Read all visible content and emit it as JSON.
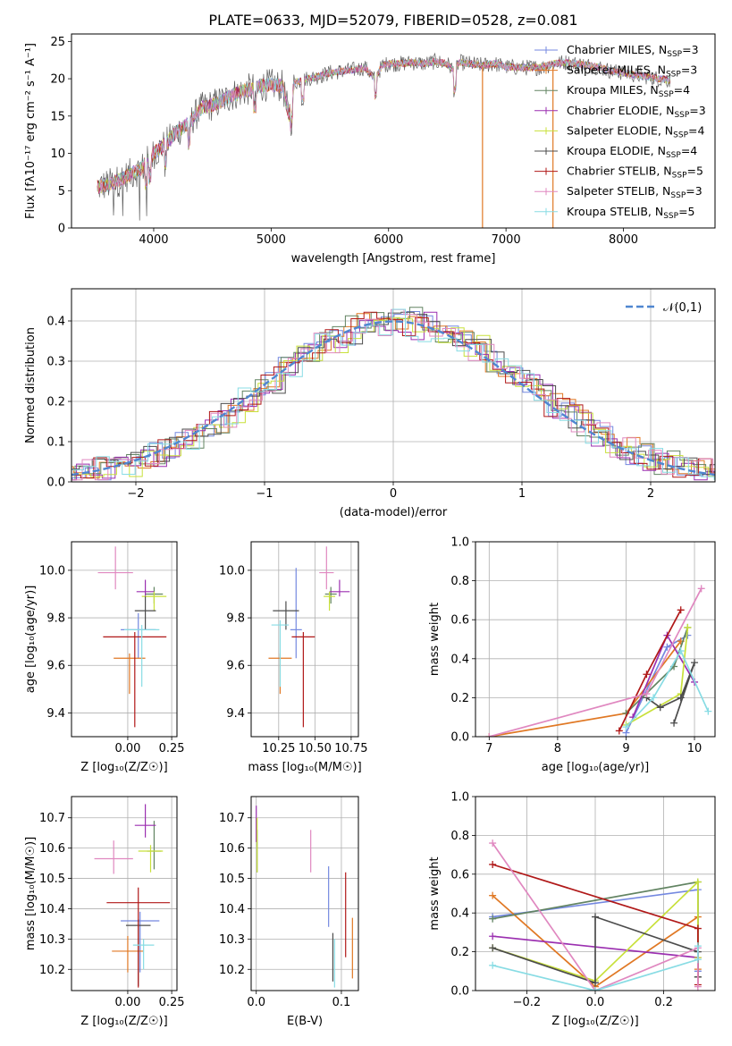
{
  "title": "PLATE=0633, MJD=52079, FIBERID=0528, z=0.081",
  "colors": [
    "#7488e0",
    "#e07824",
    "#628462",
    "#9b2fb0",
    "#c8e03a",
    "#4c4c4c",
    "#b01818",
    "#e088c0",
    "#88dce4"
  ],
  "chart_data": [
    {
      "id": "spectrum",
      "type": "line",
      "title": "PLATE=0633, MJD=52079, FIBERID=0528, z=0.081",
      "xlabel": "wavelength [Angstrom, rest frame]",
      "ylabel": "Flux [fλ10⁻¹⁷ erg cm⁻² s⁻¹ A⁻¹]",
      "xlim": [
        3300,
        8780
      ],
      "ylim": [
        0,
        26
      ],
      "xticks": [
        4000,
        5000,
        6000,
        7000,
        8000
      ],
      "yticks": [
        0,
        5,
        10,
        15,
        20,
        25
      ],
      "grid": false,
      "legend_position": "top-right",
      "legend": [
        "Chabrier MILES, N_SSP=3",
        "Salpeter MILES, N_SSP=3",
        "Kroupa MILES, N_SSP=4",
        "Chabrier ELODIE, N_SSP=3",
        "Salpeter ELODIE, N_SSP=4",
        "Kroupa ELODIE, N_SSP=4",
        "Chabrier STELIB, N_SSP=5",
        "Salpeter STELIB, N_SSP=3",
        "Kroupa STELIB, N_SSP=5"
      ],
      "envelope": {
        "x": [
          3520,
          3600,
          3700,
          3800,
          3900,
          4000,
          4100,
          4200,
          4300,
          4400,
          4500,
          4600,
          4700,
          4800,
          4900,
          5000,
          5100,
          5150,
          5200,
          5300,
          5400,
          5500,
          5600,
          5700,
          5800,
          5880,
          5950,
          6000,
          6100,
          6200,
          6300,
          6400,
          6500,
          6563,
          6600,
          6700,
          6800,
          6900,
          7000,
          7100,
          7200,
          7300,
          7400,
          7500,
          7600,
          7700,
          7800,
          7900,
          8000,
          8100,
          8200,
          8300,
          8400
        ],
        "y": [
          5.5,
          5.8,
          6.3,
          7.2,
          8.0,
          10.0,
          11.2,
          13.0,
          14.0,
          16.0,
          16.5,
          17.2,
          18.0,
          18.5,
          19.0,
          19.2,
          19.0,
          15.0,
          19.5,
          20.0,
          20.3,
          20.8,
          21.0,
          21.2,
          21.5,
          20.0,
          21.8,
          22.0,
          22.0,
          22.2,
          22.0,
          22.3,
          22.0,
          21.0,
          22.2,
          22.0,
          21.8,
          22.0,
          21.6,
          21.5,
          21.5,
          21.5,
          22.0,
          22.2,
          22.0,
          21.8,
          21.5,
          21.0,
          20.8,
          20.5,
          20.3,
          20.0,
          19.8
        ]
      },
      "drops": [
        {
          "x": 6800,
          "color": "#e07824"
        },
        {
          "x": 7400,
          "color": "#e07824"
        }
      ]
    },
    {
      "id": "residuals",
      "type": "histogram",
      "xlabel": "(data-model)/error",
      "ylabel": "Normed distribution",
      "xlim": [
        -2.5,
        2.5
      ],
      "ylim": [
        0,
        0.48
      ],
      "xticks": [
        -2,
        -1,
        0,
        1,
        2
      ],
      "yticks": [
        0.0,
        0.1,
        0.2,
        0.3,
        0.4
      ],
      "grid": true,
      "legend": [
        "𝒩(0,1)"
      ],
      "legend_position": "top-right",
      "bin_width": 0.1,
      "reference": {
        "name": "𝒩(0,1)",
        "mean": 0,
        "sigma": 1
      }
    },
    {
      "id": "age-vs-Z",
      "type": "errorbar",
      "xlabel": "Z [log₁₀(Z/Z☉)]",
      "ylabel": "age  [log₁₀(age/yr)]",
      "xlim": [
        -0.32,
        0.28
      ],
      "ylim": [
        9.3,
        10.12
      ],
      "xticks": [
        0.0,
        0.25
      ],
      "xticklabels": [
        "0.00",
        "0.25"
      ],
      "yticks": [
        9.4,
        9.6,
        9.8,
        10.0
      ],
      "grid": true,
      "points": [
        {
          "x": 0.06,
          "y": 9.75,
          "xerr": 0.1,
          "yerr": [
            0.12,
            0.07
          ]
        },
        {
          "x": 0.01,
          "y": 9.63,
          "xerr": 0.09,
          "yerr": [
            0.15,
            0.02
          ]
        },
        {
          "x": 0.15,
          "y": 9.9,
          "xerr": 0.05,
          "yerr": [
            0.04,
            0.03
          ]
        },
        {
          "x": 0.1,
          "y": 9.91,
          "xerr": 0.05,
          "yerr": [
            0.02,
            0.05
          ]
        },
        {
          "x": 0.15,
          "y": 9.89,
          "xerr": 0.07,
          "yerr": [
            0.06,
            0.02
          ]
        },
        {
          "x": 0.1,
          "y": 9.83,
          "xerr": 0.06,
          "yerr": [
            0.08,
            0.06
          ]
        },
        {
          "x": 0.04,
          "y": 9.72,
          "xerr": 0.18,
          "yerr": [
            0.38,
            0.02
          ]
        },
        {
          "x": -0.07,
          "y": 9.99,
          "xerr": 0.1,
          "yerr": [
            0.07,
            0.11
          ]
        },
        {
          "x": 0.08,
          "y": 9.75,
          "xerr": 0.1,
          "yerr": [
            0.24,
            0.02
          ]
        }
      ]
    },
    {
      "id": "age-vs-mass",
      "type": "errorbar",
      "xlabel": "mass [log₁₀(M/M☉)]",
      "ylabel": "",
      "xlim": [
        10.06,
        10.8
      ],
      "ylim": [
        9.3,
        10.12
      ],
      "xticks": [
        10.25,
        10.5,
        10.75
      ],
      "xticklabels": [
        "10.25",
        "10.50",
        "10.75"
      ],
      "yticks": [
        9.4,
        9.6,
        9.8,
        10.0
      ],
      "grid": true,
      "points": [
        {
          "x": 10.37,
          "y": 9.75,
          "xerr": 0.04,
          "yerr": [
            0.12,
            0.26
          ]
        },
        {
          "x": 10.26,
          "y": 9.63,
          "xerr": 0.08,
          "yerr": [
            0.15,
            0.02
          ]
        },
        {
          "x": 10.61,
          "y": 9.9,
          "xerr": 0.04,
          "yerr": [
            0.04,
            0.03
          ]
        },
        {
          "x": 10.67,
          "y": 9.91,
          "xerr": 0.07,
          "yerr": [
            0.02,
            0.05
          ]
        },
        {
          "x": 10.6,
          "y": 9.89,
          "xerr": 0.04,
          "yerr": [
            0.06,
            0.02
          ]
        },
        {
          "x": 10.3,
          "y": 9.83,
          "xerr": 0.09,
          "yerr": [
            0.08,
            0.04
          ]
        },
        {
          "x": 10.42,
          "y": 9.72,
          "xerr": 0.08,
          "yerr": [
            0.38,
            0.02
          ]
        },
        {
          "x": 10.58,
          "y": 9.99,
          "xerr": 0.05,
          "yerr": [
            0.07,
            0.11
          ]
        },
        {
          "x": 10.26,
          "y": 9.77,
          "xerr": 0.06,
          "yerr": [
            0.26,
            0.02
          ]
        }
      ]
    },
    {
      "id": "weight-vs-age",
      "type": "line",
      "xlabel": "age  [log₁₀(age/yr)]",
      "ylabel": "mass weight",
      "xlim": [
        6.8,
        10.3
      ],
      "ylim": [
        0,
        1.0
      ],
      "xticks": [
        7,
        8,
        9,
        10
      ],
      "yticks": [
        0.0,
        0.2,
        0.4,
        0.6,
        0.8,
        1.0
      ],
      "grid": true,
      "series": [
        {
          "x": [
            9.0,
            9.6,
            9.9
          ],
          "y": [
            0.02,
            0.46,
            0.52
          ]
        },
        {
          "x": [
            7.0,
            9.0,
            9.8
          ],
          "y": [
            0.0,
            0.12,
            0.49
          ]
        },
        {
          "x": [
            9.0,
            9.7,
            9.9
          ],
          "y": [
            0.12,
            0.36,
            0.56
          ]
        },
        {
          "x": [
            9.1,
            9.6,
            10.0
          ],
          "y": [
            0.1,
            0.52,
            0.28
          ]
        },
        {
          "x": [
            9.0,
            9.8,
            9.9
          ],
          "y": [
            0.06,
            0.22,
            0.56
          ]
        },
        {
          "x": [
            9.3,
            9.5,
            9.8,
            10.0,
            9.7
          ],
          "y": [
            0.2,
            0.15,
            0.2,
            0.38,
            0.07
          ]
        },
        {
          "x": [
            8.9,
            9.3,
            9.8
          ],
          "y": [
            0.03,
            0.32,
            0.65
          ]
        },
        {
          "x": [
            7.0,
            9.3,
            10.1
          ],
          "y": [
            0.0,
            0.22,
            0.76
          ]
        },
        {
          "x": [
            9.0,
            9.4,
            9.8,
            10.2
          ],
          "y": [
            0.05,
            0.2,
            0.44,
            0.13
          ]
        }
      ]
    },
    {
      "id": "mass-vs-Z",
      "type": "errorbar",
      "xlabel": "Z [log₁₀(Z/Z☉)]",
      "ylabel": "mass [log₁₀(M/M☉)]",
      "xlim": [
        -0.32,
        0.28
      ],
      "ylim": [
        10.13,
        10.77
      ],
      "xticks": [
        0.0,
        0.25
      ],
      "xticklabels": [
        "0.00",
        "0.25"
      ],
      "yticks": [
        10.2,
        10.3,
        10.4,
        10.5,
        10.6,
        10.7
      ],
      "grid": true,
      "points": [
        {
          "x": 0.07,
          "y": 10.36,
          "xerr": 0.11,
          "yerr": [
            0.17,
            0.03
          ]
        },
        {
          "x": 0.0,
          "y": 10.26,
          "xerr": 0.09,
          "yerr": [
            0.07,
            0.05
          ]
        },
        {
          "x": 0.15,
          "y": 10.59,
          "xerr": 0.04,
          "yerr": [
            0.06,
            0.1
          ]
        },
        {
          "x": 0.1,
          "y": 10.675,
          "xerr": 0.06,
          "yerr": [
            0.04,
            0.07
          ]
        },
        {
          "x": 0.13,
          "y": 10.59,
          "xerr": 0.07,
          "yerr": [
            0.07,
            0.02
          ]
        },
        {
          "x": 0.06,
          "y": 10.345,
          "xerr": 0.07,
          "yerr": [
            0.2,
            0.02
          ]
        },
        {
          "x": 0.06,
          "y": 10.42,
          "xerr": 0.18,
          "yerr": [
            0.28,
            0.05
          ]
        },
        {
          "x": -0.08,
          "y": 10.565,
          "xerr": 0.11,
          "yerr": [
            0.05,
            0.06
          ]
        },
        {
          "x": 0.09,
          "y": 10.28,
          "xerr": 0.06,
          "yerr": [
            0.08,
            0.02
          ]
        }
      ]
    },
    {
      "id": "mass-vs-ebv",
      "type": "errorbar",
      "xlabel": "E(B-V)",
      "ylabel": "",
      "xlim": [
        -0.006,
        0.12
      ],
      "ylim": [
        10.13,
        10.77
      ],
      "xticks": [
        0.0,
        0.1
      ],
      "xticklabels": [
        "0.0",
        "0.1"
      ],
      "yticks": [
        10.2,
        10.3,
        10.4,
        10.5,
        10.6,
        10.7
      ],
      "grid": true,
      "points": [
        {
          "x": 0.085,
          "y": 10.44,
          "xerr": 0.0,
          "yerr": [
            0.1,
            0.1
          ]
        },
        {
          "x": 0.113,
          "y": 10.27,
          "xerr": 0.0,
          "yerr": [
            0.1,
            0.1
          ]
        },
        {
          "x": 0.001,
          "y": 10.59,
          "xerr": 0.0,
          "yerr": [
            0.07,
            0.07
          ]
        },
        {
          "x": 0.0,
          "y": 10.68,
          "xerr": 0.0,
          "yerr": [
            0.06,
            0.06
          ]
        },
        {
          "x": 0.001,
          "y": 10.61,
          "xerr": 0.0,
          "yerr": [
            0.09,
            0.09
          ]
        },
        {
          "x": 0.09,
          "y": 10.24,
          "xerr": 0.0,
          "yerr": [
            0.08,
            0.08
          ]
        },
        {
          "x": 0.105,
          "y": 10.38,
          "xerr": 0.0,
          "yerr": [
            0.14,
            0.14
          ]
        },
        {
          "x": 0.064,
          "y": 10.59,
          "xerr": 0.0,
          "yerr": [
            0.07,
            0.07
          ]
        },
        {
          "x": 0.092,
          "y": 10.22,
          "xerr": 0.0,
          "yerr": [
            0.08,
            0.08
          ]
        }
      ]
    },
    {
      "id": "weight-vs-Z",
      "type": "line",
      "xlabel": "Z [log₁₀(Z/Z☉)]",
      "ylabel": "mass weight",
      "xlim": [
        -0.35,
        0.35
      ],
      "ylim": [
        0,
        1.0
      ],
      "xticks": [
        -0.2,
        0.0,
        0.2
      ],
      "xticklabels": [
        "−0.2",
        "0.0",
        "0.2"
      ],
      "yticks": [
        0.0,
        0.2,
        0.4,
        0.6,
        0.8,
        1.0
      ],
      "grid": true,
      "series": [
        {
          "x": [
            -0.3,
            0.3,
            0.3
          ],
          "y": [
            0.38,
            0.52,
            0.1
          ]
        },
        {
          "x": [
            -0.3,
            0.0,
            0.3,
            0.3
          ],
          "y": [
            0.49,
            0.02,
            0.38,
            0.11
          ]
        },
        {
          "x": [
            -0.3,
            0.3,
            0.3
          ],
          "y": [
            0.37,
            0.56,
            0.07
          ]
        },
        {
          "x": [
            -0.3,
            0.3
          ],
          "y": [
            0.28,
            0.17
          ]
        },
        {
          "x": [
            -0.3,
            0.0,
            0.3,
            0.3
          ],
          "y": [
            0.22,
            0.05,
            0.56,
            0.17
          ]
        },
        {
          "x": [
            -0.3,
            0.0,
            0.0,
            0.3,
            0.3
          ],
          "y": [
            0.22,
            0.04,
            0.38,
            0.2,
            0.07
          ]
        },
        {
          "x": [
            -0.3,
            0.3,
            0.3
          ],
          "y": [
            0.65,
            0.32,
            0.03
          ]
        },
        {
          "x": [
            -0.3,
            0.0,
            0.3,
            0.3
          ],
          "y": [
            0.76,
            0.0,
            0.22,
            0.02
          ]
        },
        {
          "x": [
            -0.3,
            0.0,
            0.3,
            0.3
          ],
          "y": [
            0.13,
            0.0,
            0.16,
            0.23
          ]
        }
      ]
    }
  ]
}
